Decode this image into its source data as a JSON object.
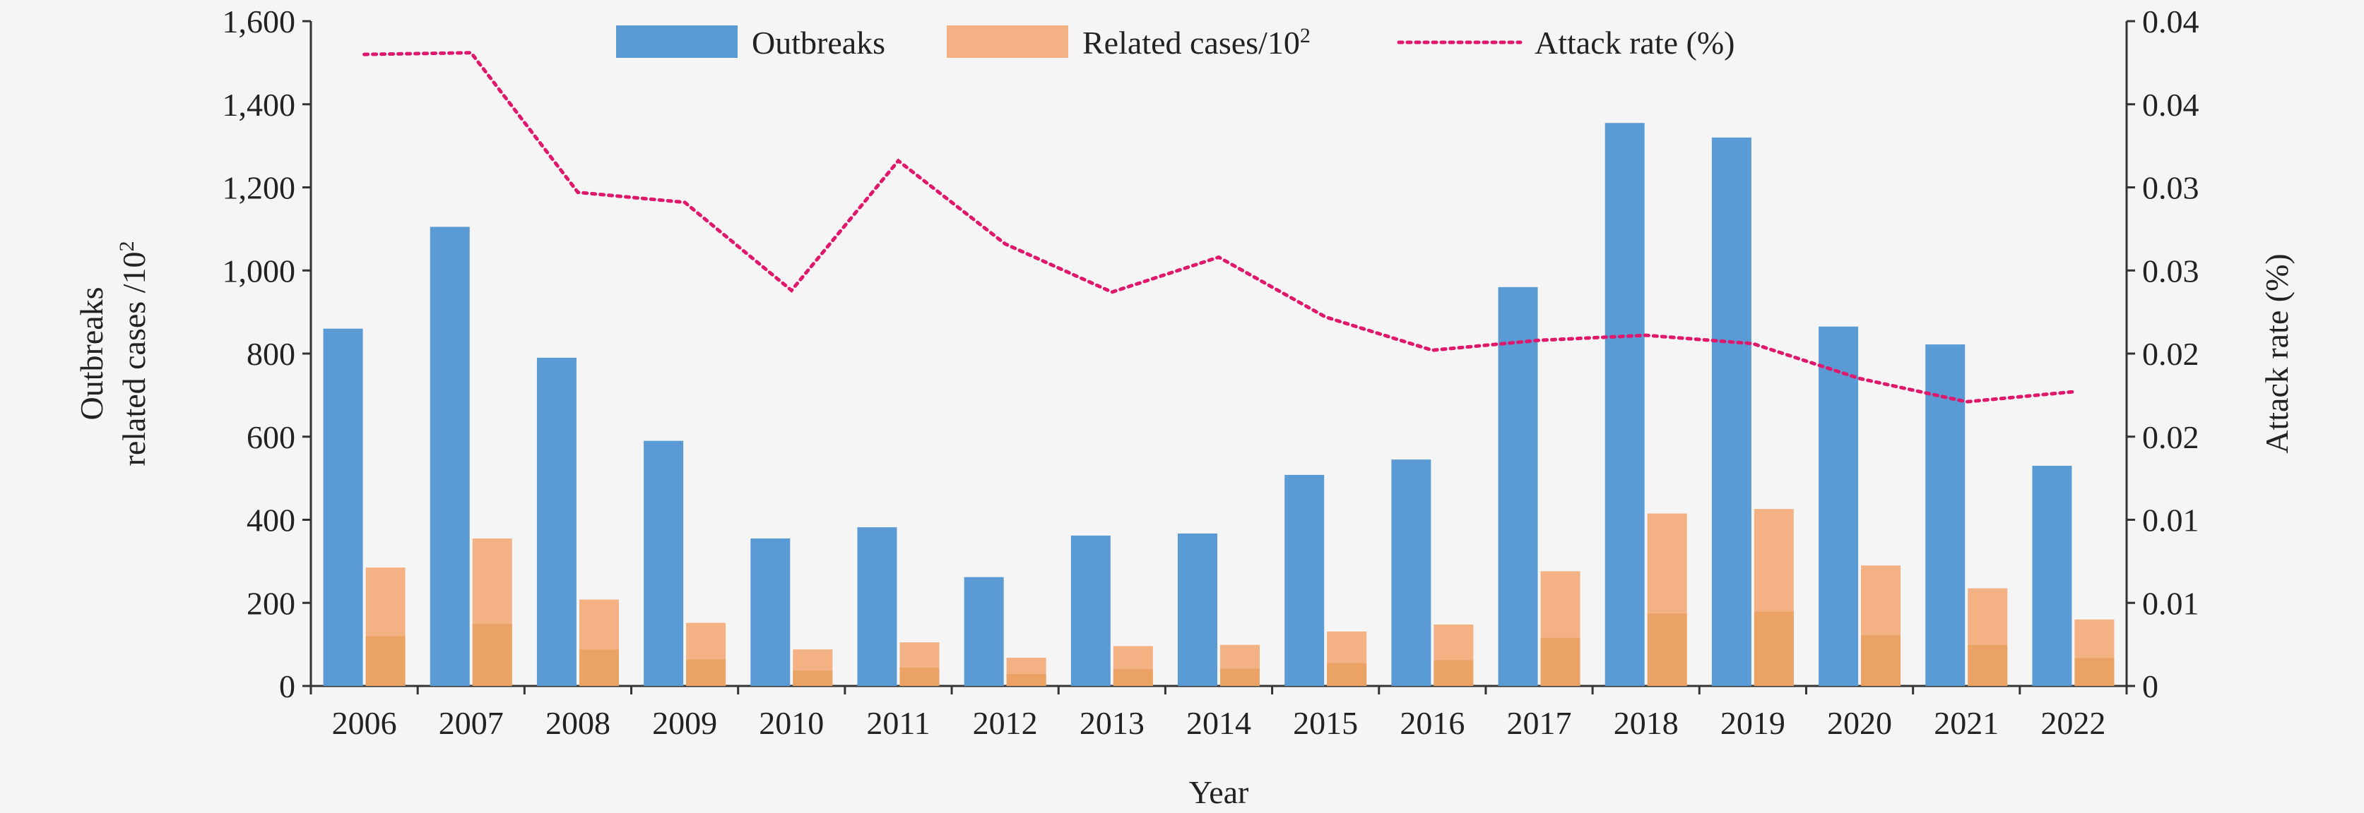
{
  "chart_data": {
    "type": "bar",
    "categories": [
      "2006",
      "2007",
      "2008",
      "2009",
      "2010",
      "2011",
      "2012",
      "2013",
      "2014",
      "2015",
      "2016",
      "2017",
      "2018",
      "2019",
      "2020",
      "2021",
      "2022"
    ],
    "series": [
      {
        "name": "Outbreaks",
        "axis": "left",
        "type": "bar",
        "color": "#5b9bd5",
        "values": [
          860,
          1105,
          790,
          590,
          355,
          382,
          262,
          362,
          367,
          508,
          545,
          960,
          1355,
          1320,
          865,
          822,
          530
        ]
      },
      {
        "name": "Related cases/10",
        "name_superscript": "2",
        "axis": "left",
        "type": "bar",
        "color": "#f4b183",
        "values": [
          285,
          355,
          208,
          152,
          88,
          105,
          68,
          96,
          99,
          131,
          148,
          276,
          415,
          426,
          290,
          235,
          160
        ]
      },
      {
        "name": "Attack rate (%)",
        "axis": "right",
        "type": "line",
        "color": "#e0186c",
        "style": "dotted",
        "values": [
          0.038,
          0.0381,
          0.0297,
          0.0291,
          0.0238,
          0.0316,
          0.0266,
          0.0237,
          0.0258,
          0.0222,
          0.0202,
          0.0208,
          0.0211,
          0.0206,
          0.0185,
          0.0171,
          0.0177
        ]
      }
    ],
    "title": "",
    "xlabel": "Year",
    "ylabel_left_line1": "Outbreaks",
    "ylabel_left_line2": "related cases /10",
    "ylabel_left_superscript": "2",
    "ylabel_right": "Attack rate (%)",
    "ylim_left": [
      0,
      1600
    ],
    "yticks_left": [
      "0",
      "200",
      "400",
      "600",
      "800",
      "1,000",
      "1,200",
      "1,400",
      "1,600"
    ],
    "ylim_right": [
      0,
      0.04
    ],
    "yticks_right": [
      "0",
      "0.01",
      "0.01",
      "0.02",
      "0.02",
      "0.03",
      "0.03",
      "0.04",
      "0.04"
    ],
    "legend_position": "top-center",
    "grid": false
  }
}
